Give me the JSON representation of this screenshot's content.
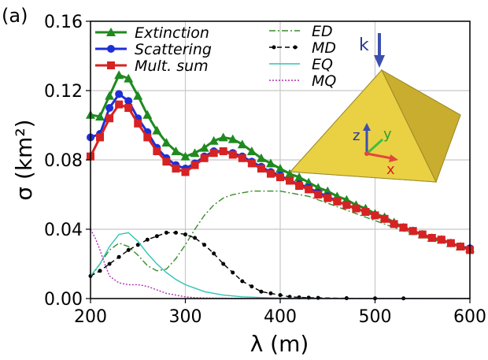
{
  "panel_label": "(a)",
  "chart_data": {
    "type": "line",
    "title": "",
    "xlabel": "λ (m)",
    "ylabel": "σ (km²)",
    "xlim": [
      200,
      600
    ],
    "ylim": [
      0,
      0.16
    ],
    "xticks": [
      200,
      300,
      400,
      500,
      600
    ],
    "yticks": [
      0,
      0.04,
      0.08,
      0.12,
      0.16
    ],
    "xtick_labels": [
      "200",
      "300",
      "400",
      "500",
      "600"
    ],
    "ytick_labels": [
      "0.00",
      "0.04",
      "0.08",
      "0.12",
      "0.16"
    ],
    "grid": true,
    "legend_left": [
      "Extinction",
      "Scattering",
      "Mult. sum"
    ],
    "legend_right": [
      "ED",
      "MD",
      "EQ",
      "MQ"
    ],
    "series": [
      {
        "name": "Extinction",
        "color": "#1f8a1f",
        "marker": "triangle",
        "line": "solid",
        "x": [
          200,
          210,
          220,
          230,
          240,
          250,
          260,
          270,
          280,
          290,
          300,
          310,
          320,
          330,
          340,
          350,
          360,
          370,
          380,
          390,
          400,
          410,
          420,
          430,
          440,
          450,
          460,
          470,
          480,
          490,
          500,
          510,
          520,
          530,
          540,
          550,
          560,
          570,
          580,
          590,
          600
        ],
        "y": [
          0.106,
          0.105,
          0.117,
          0.129,
          0.127,
          0.117,
          0.106,
          0.097,
          0.09,
          0.085,
          0.082,
          0.084,
          0.087,
          0.091,
          0.093,
          0.092,
          0.089,
          0.085,
          0.081,
          0.078,
          0.075,
          0.072,
          0.07,
          0.067,
          0.064,
          0.062,
          0.059,
          0.057,
          0.054,
          0.052,
          0.049,
          0.047,
          0.044,
          0.041,
          0.039,
          0.037,
          0.035,
          0.034,
          0.032,
          0.03,
          0.029
        ]
      },
      {
        "name": "Scattering",
        "color": "#1f2fd6",
        "marker": "circle",
        "line": "solid",
        "x": [
          200,
          210,
          220,
          230,
          240,
          250,
          260,
          270,
          280,
          290,
          300,
          310,
          320,
          330,
          340,
          350,
          360,
          370,
          380,
          390,
          400,
          410,
          420,
          430,
          440,
          450,
          460,
          470,
          480,
          490,
          500,
          510,
          520,
          530,
          540,
          550,
          560,
          570,
          580,
          590,
          600
        ],
        "y": [
          0.093,
          0.095,
          0.11,
          0.118,
          0.114,
          0.104,
          0.096,
          0.087,
          0.081,
          0.077,
          0.075,
          0.078,
          0.082,
          0.085,
          0.085,
          0.084,
          0.082,
          0.079,
          0.076,
          0.073,
          0.071,
          0.068,
          0.066,
          0.064,
          0.061,
          0.059,
          0.056,
          0.054,
          0.052,
          0.05,
          0.048,
          0.046,
          0.043,
          0.041,
          0.039,
          0.037,
          0.035,
          0.034,
          0.032,
          0.03,
          0.029
        ]
      },
      {
        "name": "Mult. sum",
        "color": "#d62222",
        "marker": "square",
        "line": "solid",
        "x": [
          200,
          210,
          220,
          230,
          240,
          250,
          260,
          270,
          280,
          290,
          300,
          310,
          320,
          330,
          340,
          350,
          360,
          370,
          380,
          390,
          400,
          410,
          420,
          430,
          440,
          450,
          460,
          470,
          480,
          490,
          500,
          510,
          520,
          530,
          540,
          550,
          560,
          570,
          580,
          590,
          600
        ],
        "y": [
          0.082,
          0.093,
          0.104,
          0.112,
          0.11,
          0.101,
          0.093,
          0.085,
          0.079,
          0.075,
          0.073,
          0.077,
          0.081,
          0.084,
          0.085,
          0.083,
          0.081,
          0.078,
          0.075,
          0.072,
          0.07,
          0.068,
          0.065,
          0.063,
          0.06,
          0.058,
          0.056,
          0.054,
          0.052,
          0.05,
          0.048,
          0.046,
          0.043,
          0.041,
          0.039,
          0.037,
          0.035,
          0.034,
          0.032,
          0.03,
          0.028
        ]
      },
      {
        "name": "ED",
        "color": "#3a8a2a",
        "marker": "none",
        "line": "dashdot",
        "x": [
          200,
          210,
          220,
          230,
          240,
          250,
          260,
          270,
          280,
          290,
          300,
          310,
          320,
          330,
          340,
          350,
          360,
          370,
          380,
          390,
          400,
          410,
          420,
          430,
          440,
          450,
          460,
          470,
          480,
          490,
          500,
          510,
          520,
          530,
          540,
          550,
          560,
          570,
          580,
          590,
          600
        ],
        "y": [
          0.012,
          0.02,
          0.028,
          0.032,
          0.03,
          0.025,
          0.019,
          0.016,
          0.017,
          0.023,
          0.031,
          0.04,
          0.048,
          0.054,
          0.058,
          0.06,
          0.061,
          0.062,
          0.062,
          0.062,
          0.062,
          0.061,
          0.06,
          0.059,
          0.057,
          0.055,
          0.053,
          0.051,
          0.049,
          0.047,
          0.045,
          0.043,
          0.041,
          0.039,
          0.038,
          0.036,
          0.034,
          0.033,
          0.031,
          0.03,
          0.029
        ]
      },
      {
        "name": "MD",
        "color": "#000000",
        "marker": "dot",
        "line": "dashed",
        "x": [
          200,
          210,
          220,
          230,
          240,
          250,
          260,
          270,
          280,
          290,
          300,
          310,
          320,
          330,
          340,
          350,
          360,
          370,
          380,
          390,
          400,
          410,
          420,
          430,
          440,
          450,
          460,
          470,
          480,
          490,
          500,
          510,
          520,
          530,
          540,
          550
        ],
        "y": [
          0.013,
          0.016,
          0.02,
          0.024,
          0.028,
          0.031,
          0.034,
          0.036,
          0.038,
          0.038,
          0.037,
          0.035,
          0.031,
          0.026,
          0.02,
          0.015,
          0.01,
          0.007,
          0.004,
          0.003,
          0.002,
          0.001,
          0.0007,
          0.0005,
          0.0004,
          0.0003,
          0.0002,
          0.0002,
          0.0001,
          0.0001,
          0.0001,
          0.0001,
          0.0001,
          0.0001,
          0.0001,
          0.0001
        ]
      },
      {
        "name": "EQ",
        "color": "#2ec4b6",
        "marker": "none",
        "line": "solid",
        "x": [
          200,
          210,
          220,
          230,
          240,
          250,
          260,
          270,
          280,
          290,
          300,
          310,
          320,
          330,
          340,
          350,
          360,
          370,
          380,
          390,
          400,
          420,
          440,
          460,
          480,
          500,
          550,
          600
        ],
        "y": [
          0.013,
          0.02,
          0.03,
          0.037,
          0.038,
          0.033,
          0.026,
          0.02,
          0.015,
          0.011,
          0.008,
          0.006,
          0.004,
          0.003,
          0.002,
          0.0015,
          0.001,
          0.0008,
          0.0006,
          0.0004,
          0.0003,
          0.0002,
          0.0001,
          0.0001,
          0.0001,
          0.0001,
          0.0001,
          0.0001
        ]
      },
      {
        "name": "MQ",
        "color": "#b02fb0",
        "marker": "none",
        "line": "dotted",
        "x": [
          200,
          205,
          210,
          215,
          220,
          230,
          240,
          250,
          260,
          270,
          280,
          290,
          300,
          310,
          320,
          340,
          360,
          400,
          450,
          500,
          550,
          600
        ],
        "y": [
          0.04,
          0.035,
          0.028,
          0.02,
          0.013,
          0.009,
          0.008,
          0.008,
          0.007,
          0.005,
          0.003,
          0.002,
          0.001,
          0.0005,
          0.0003,
          0.0002,
          0.0001,
          0.0001,
          0.0001,
          0.0001,
          0.0001,
          0.0001
        ]
      }
    ]
  },
  "inset": {
    "k_label": "k",
    "axis_z": "z",
    "axis_y": "y",
    "axis_x": "x"
  }
}
